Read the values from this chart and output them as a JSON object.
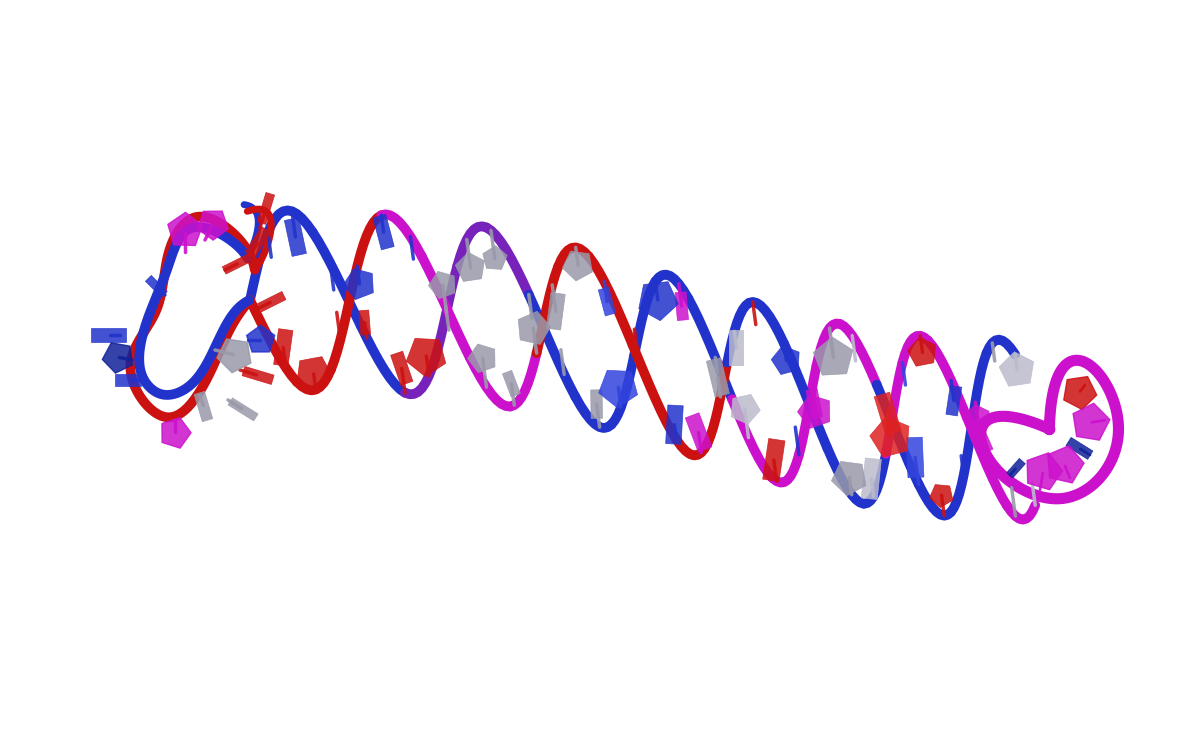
{
  "background_color": "#ffffff",
  "figsize": [
    12,
    7.5
  ],
  "dpi": 100,
  "image_path": null,
  "strand_colors": {
    "red": "#cc1111",
    "blue": "#2233cc",
    "magenta": "#cc11cc",
    "purple": "#7722bb",
    "gray": "#9999aa",
    "light_gray": "#bbbbcc",
    "dark_blue": "#112299"
  },
  "nucleobase_colors": [
    "#cc1111",
    "#2233cc",
    "#cc11cc",
    "#9999aa",
    "#bbbbcc",
    "#dd2222",
    "#3344dd"
  ],
  "seed": 42
}
